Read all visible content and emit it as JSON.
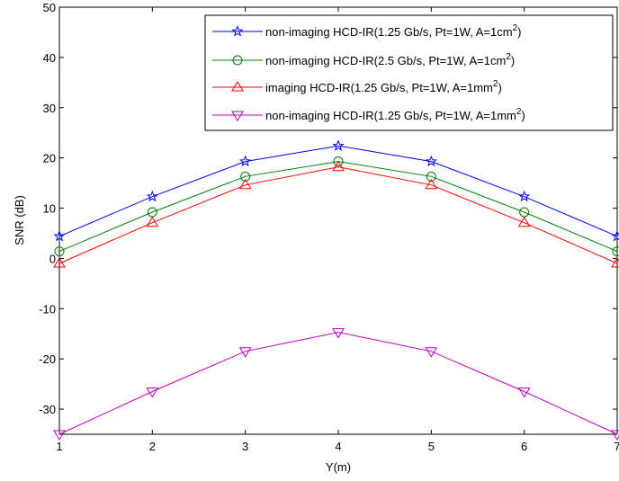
{
  "chart_data": {
    "type": "line",
    "title": "",
    "xlabel": "Y(m)",
    "ylabel": "SNR (dB)",
    "xlim": [
      1,
      7
    ],
    "ylim": [
      -35,
      50
    ],
    "x": [
      1,
      2,
      3,
      4,
      5,
      6,
      7
    ],
    "xticks": [
      "1",
      "2",
      "3",
      "4",
      "5",
      "6",
      "7"
    ],
    "yticks": [
      "-30",
      "-20",
      "-10",
      "0",
      "10",
      "20",
      "30",
      "40",
      "50"
    ],
    "grid": false,
    "legend_position": "top-right",
    "series": [
      {
        "name": "non-imaging HCD-IR(1.25 Gb/s, Pt=1W, A=1cm",
        "name_sup": "2",
        "name_end": ")",
        "color": "#0000ff",
        "marker": "star",
        "values": [
          4.4,
          12.3,
          19.3,
          22.4,
          19.3,
          12.3,
          4.4
        ]
      },
      {
        "name": "non-imaging HCD-IR(2.5 Gb/s, Pt=1W, A=1cm",
        "name_sup": "2",
        "name_end": ")",
        "color": "#008000",
        "marker": "circle",
        "values": [
          1.4,
          9.2,
          16.3,
          19.3,
          16.3,
          9.2,
          1.4
        ]
      },
      {
        "name": "imaging HCD-IR(1.25 Gb/s, Pt=1W, A=1mm",
        "name_sup": "2",
        "name_end": ")",
        "color": "#ff0000",
        "marker": "triangle-up",
        "values": [
          -1.0,
          7.1,
          14.6,
          18.2,
          14.6,
          7.1,
          -1.0
        ]
      },
      {
        "name": "non-imaging HCD-IR(1.25 Gb/s, Pt=1W, A=1mm",
        "name_sup": "2",
        "name_end": ")",
        "color": "#bf00bf",
        "marker": "triangle-down",
        "values": [
          -35.0,
          -26.5,
          -18.5,
          -14.7,
          -18.5,
          -26.5,
          -35.0
        ]
      }
    ]
  }
}
